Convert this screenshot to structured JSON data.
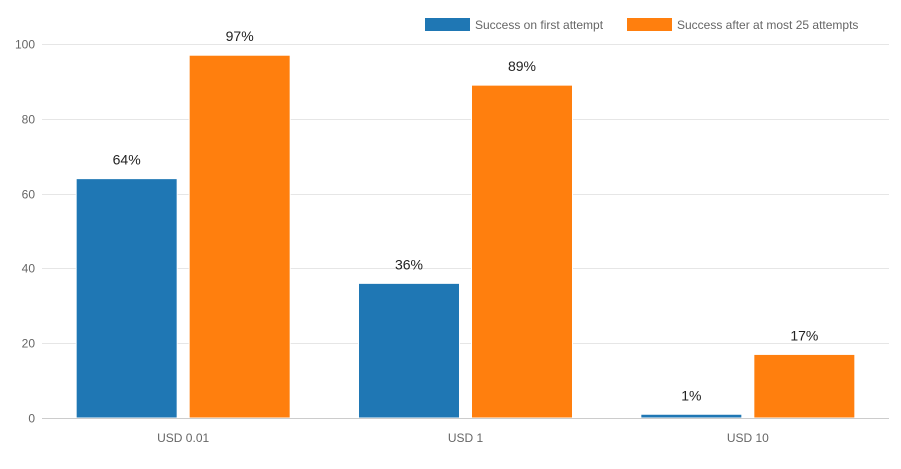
{
  "chart_data": {
    "type": "bar",
    "title": "",
    "xlabel": "",
    "ylabel": "",
    "categories": [
      "USD 0.01",
      "USD 1",
      "USD 10"
    ],
    "ylim": [
      0,
      100
    ],
    "yticks": [
      0,
      20,
      40,
      60,
      80,
      100
    ],
    "grid": true,
    "legend_position": "top-right",
    "series": [
      {
        "name": "Success on first attempt",
        "color": "#1f77b4",
        "values": [
          64,
          36,
          1
        ],
        "labels": [
          "64%",
          "36%",
          "1%"
        ]
      },
      {
        "name": "Success after at most 25 attempts",
        "color": "#ff7f0e",
        "values": [
          97,
          89,
          17
        ],
        "labels": [
          "97%",
          "89%",
          "17%"
        ]
      }
    ]
  }
}
